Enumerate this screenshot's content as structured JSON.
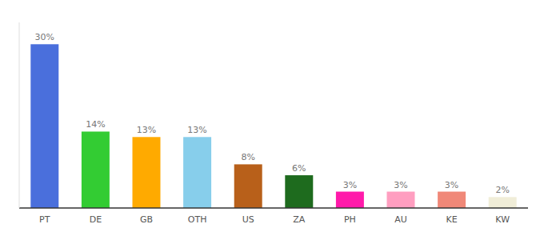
{
  "chart_data": {
    "type": "bar",
    "categories": [
      "PT",
      "DE",
      "GB",
      "OTH",
      "US",
      "ZA",
      "PH",
      "AU",
      "KE",
      "KW"
    ],
    "values": [
      30,
      14,
      13,
      13,
      8,
      6,
      3,
      3,
      3,
      2
    ],
    "value_labels": [
      "30%",
      "14%",
      "13%",
      "13%",
      "8%",
      "6%",
      "3%",
      "3%",
      "3%",
      "2%"
    ],
    "data_labels": true,
    "colors": [
      "#4a6fdc",
      "#33cc33",
      "#ffaa00",
      "#87ceeb",
      "#b8601a",
      "#1e6b1e",
      "#ff1aaa",
      "#ff9ec0",
      "#f08878",
      "#f0edd8"
    ],
    "ylim": [
      0,
      34
    ],
    "tick_labels": "x",
    "grid": false
  }
}
